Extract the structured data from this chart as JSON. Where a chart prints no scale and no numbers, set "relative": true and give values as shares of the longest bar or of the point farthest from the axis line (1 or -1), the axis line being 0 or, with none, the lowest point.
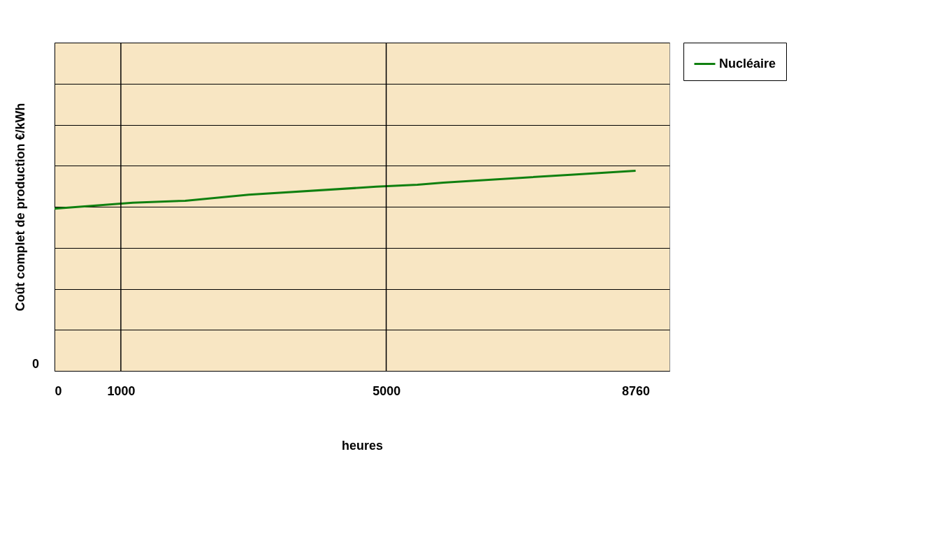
{
  "chart_data": {
    "type": "line",
    "relative": true,
    "ylabel": "Coût complet de production €/kWh",
    "xlabel": "heures",
    "x": [
      0,
      1180,
      1970,
      2930,
      4850,
      5470,
      5860,
      7780,
      8760
    ],
    "xlim": [
      0,
      9270
    ],
    "xticks": [
      0,
      1000,
      5000,
      8760
    ],
    "series": [
      {
        "name": "Nucléaire",
        "color": "#108010",
        "values": [
          0.81,
          0.84,
          0.85,
          0.88,
          0.92,
          0.93,
          0.94,
          0.98,
          1.0
        ]
      }
    ],
    "ref_lines": [
      {
        "axis": "x",
        "value": 1000,
        "color": "#000000"
      },
      {
        "axis": "x",
        "value": 5000,
        "color": "#000000"
      }
    ],
    "annotations": [
      "0"
    ],
    "grid": "y",
    "legend": "right",
    "marker": "none",
    "line_style": "solid"
  }
}
